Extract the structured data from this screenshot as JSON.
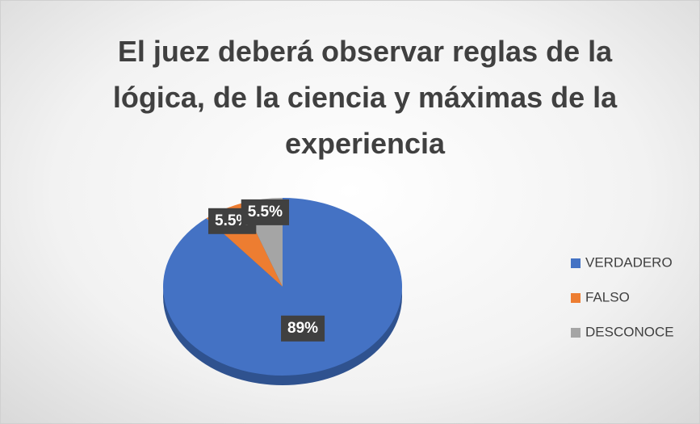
{
  "chart_data": {
    "type": "pie",
    "title": "El juez deberá observar reglas de la lógica, de la ciencia y máximas de la experiencia",
    "categories": [
      "VERDADERO",
      "FALSO",
      "DESCONOCE"
    ],
    "values": [
      89,
      5.5,
      5.5
    ],
    "value_labels": [
      "89%",
      "5.5%",
      "5.5%"
    ],
    "colors": [
      "#4472c4",
      "#ed7d31",
      "#a5a5a5"
    ],
    "legend": "right"
  }
}
